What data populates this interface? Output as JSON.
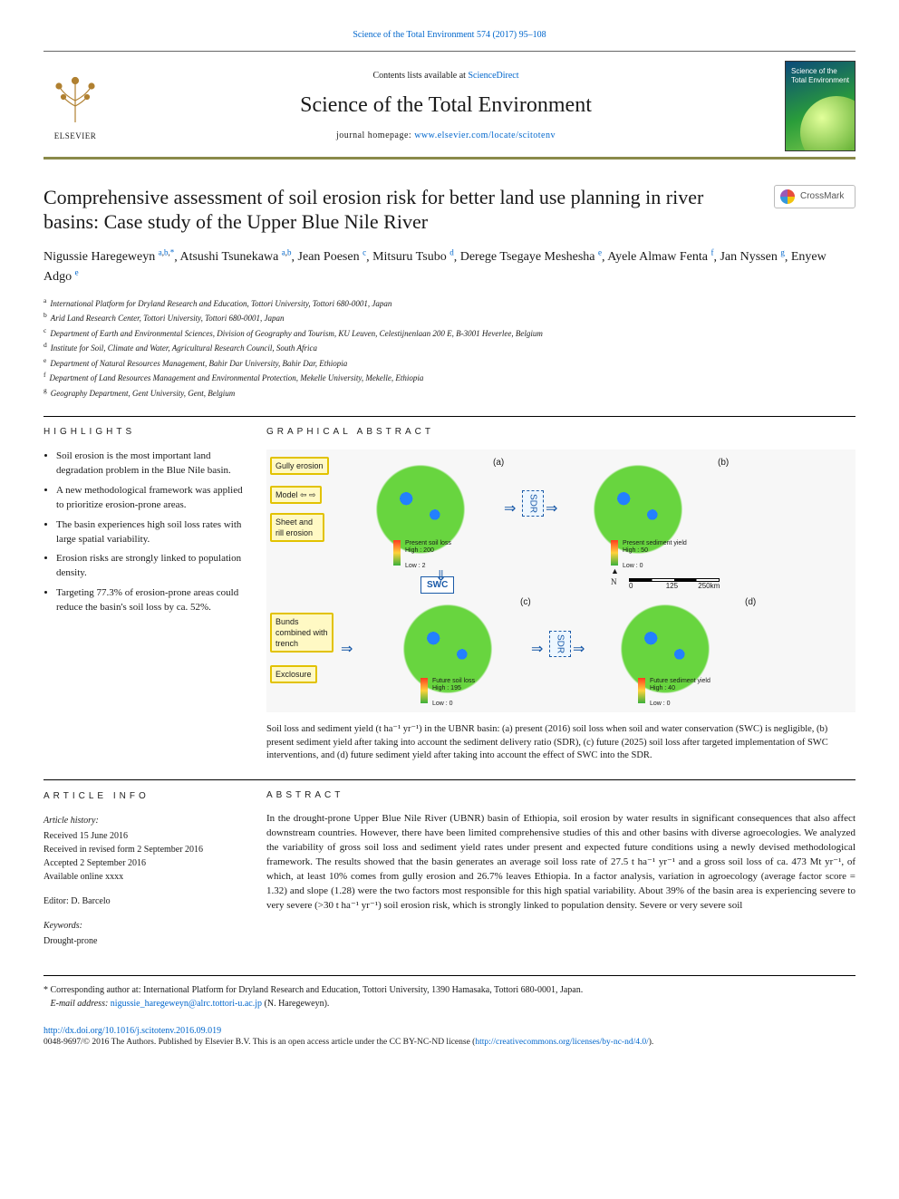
{
  "citation": {
    "text": "Science of the Total Environment 574 (2017) 95–108",
    "link_color": "#0066cc"
  },
  "masthead": {
    "contents_prefix": "Contents lists available at ",
    "contents_link": "ScienceDirect",
    "journal": "Science of the Total Environment",
    "homepage_prefix": "journal homepage: ",
    "homepage_url": "www.elsevier.com/locate/scitotenv",
    "publisher_label": "ELSEVIER",
    "cover_label_line1": "Science of the",
    "cover_label_line2": "Total Environment"
  },
  "crossmark_label": "CrossMark",
  "article": {
    "title": "Comprehensive assessment of soil erosion risk for better land use planning in river basins: Case study of the Upper Blue Nile River",
    "authors_html": [
      {
        "name": "Nigussie Haregeweyn",
        "sup": "a,b,*"
      },
      {
        "name": "Atsushi Tsunekawa",
        "sup": "a,b"
      },
      {
        "name": "Jean Poesen",
        "sup": "c"
      },
      {
        "name": "Mitsuru Tsubo",
        "sup": "d"
      },
      {
        "name": "Derege Tsegaye Meshesha",
        "sup": "e"
      },
      {
        "name": "Ayele Almaw Fenta",
        "sup": "f"
      },
      {
        "name": "Jan Nyssen",
        "sup": "g"
      },
      {
        "name": "Enyew Adgo",
        "sup": "e"
      }
    ],
    "affiliations": [
      {
        "key": "a",
        "text": "International Platform for Dryland Research and Education, Tottori University, Tottori 680-0001, Japan"
      },
      {
        "key": "b",
        "text": "Arid Land Research Center, Tottori University, Tottori 680-0001, Japan"
      },
      {
        "key": "c",
        "text": "Department of Earth and Environmental Sciences, Division of Geography and Tourism, KU Leuven, Celestijnenlaan 200 E, B-3001 Heverlee, Belgium"
      },
      {
        "key": "d",
        "text": "Institute for Soil, Climate and Water, Agricultural Research Council, South Africa"
      },
      {
        "key": "e",
        "text": "Department of Natural Resources Management, Bahir Dar University, Bahir Dar, Ethiopia"
      },
      {
        "key": "f",
        "text": "Department of Land Resources Management and Environmental Protection, Mekelle University, Mekelle, Ethiopia"
      },
      {
        "key": "g",
        "text": "Geography Department, Gent University, Gent, Belgium"
      }
    ]
  },
  "highlights": {
    "label": "HIGHLIGHTS",
    "items": [
      "Soil erosion is the most important land degradation problem in the Blue Nile basin.",
      "A new methodological framework was applied to prioritize erosion-prone areas.",
      "The basin experiences high soil loss rates with large spatial variability.",
      "Erosion risks are strongly linked to population density.",
      "Targeting 77.3% of erosion-prone areas could reduce the basin's soil loss by ca. 52%."
    ]
  },
  "graphical_abstract": {
    "label": "GRAPHICAL ABSTRACT",
    "panels": {
      "a": {
        "letter": "(a)",
        "legend_high": "High : 200",
        "legend_low": "Low : 2",
        "title": "Present soil loss"
      },
      "b": {
        "letter": "(b)",
        "legend_high": "High : 50",
        "legend_low": "Low : 0",
        "title": "Present sediment yield"
      },
      "c": {
        "letter": "(c)",
        "legend_high": "High : 195",
        "legend_low": "Low : 0",
        "title": "Future soil loss"
      },
      "d": {
        "letter": "(d)",
        "legend_high": "High : 40",
        "legend_low": "Low : 0",
        "title": "Future sediment yield"
      }
    },
    "side_boxes": {
      "gully": "Gully erosion",
      "model": "Model ⇦ ⇨",
      "sheet": "Sheet and rill erosion",
      "bunds": "Bunds combined with trench",
      "exclosure": "Exclosure"
    },
    "sdr_label": "SDR",
    "swc_label": "SWC",
    "scale_labels": {
      "left": "0",
      "mid": "125",
      "right": "250km"
    },
    "north_label": "N",
    "caption": "Soil loss and sediment yield (t ha⁻¹ yr⁻¹) in the UBNR basin: (a) present (2016) soil loss when soil and water conservation (SWC) is negligible, (b) present sediment yield after taking into account the sediment delivery ratio (SDR), (c) future (2025) soil loss after targeted implementation of SWC interventions, and (d) future sediment yield after taking into account the effect of SWC into the SDR.",
    "map_palette": {
      "high": "#ff3b1f",
      "mid": "#ffd23b",
      "low": "#3bb03b",
      "water": "#2b7fff"
    }
  },
  "article_info": {
    "label": "ARTICLE INFO",
    "history_header": "Article history:",
    "history": [
      "Received 15 June 2016",
      "Received in revised form 2 September 2016",
      "Accepted 2 September 2016",
      "Available online xxxx"
    ],
    "editor_label": "Editor:",
    "editor": "D. Barcelo",
    "keywords_label": "Keywords:",
    "keywords": [
      "Drought-prone"
    ]
  },
  "abstract": {
    "label": "ABSTRACT",
    "text": "In the drought-prone Upper Blue Nile River (UBNR) basin of Ethiopia, soil erosion by water results in significant consequences that also affect downstream countries. However, there have been limited comprehensive studies of this and other basins with diverse agroecologies. We analyzed the variability of gross soil loss and sediment yield rates under present and expected future conditions using a newly devised methodological framework. The results showed that the basin generates an average soil loss rate of 27.5 t ha⁻¹ yr⁻¹ and a gross soil loss of ca. 473 Mt yr⁻¹, of which, at least 10% comes from gully erosion and 26.7% leaves Ethiopia. In a factor analysis, variation in agroecology (average factor score = 1.32) and slope (1.28) were the two factors most responsible for this high spatial variability. About 39% of the basin area is experiencing severe to very severe (>30 t ha⁻¹ yr⁻¹) soil erosion risk, which is strongly linked to population density. Severe or very severe soil"
  },
  "footnotes": {
    "corresponding": "* Corresponding author at: International Platform for Dryland Research and Education, Tottori University, 1390 Hamasaka, Tottori 680-0001, Japan.",
    "email_label": "E-mail address:",
    "email": "nigussie_haregeweyn@alrc.tottori-u.ac.jp",
    "email_attribution": "(N. Haregeweyn)."
  },
  "doi": {
    "url": "http://dx.doi.org/10.1016/j.scitotenv.2016.09.019",
    "license": "0048-9697/© 2016 The Authors. Published by Elsevier B.V. This is an open access article under the CC BY-NC-ND license (",
    "license_url": "http://creativecommons.org/licenses/by-nc-nd/4.0/",
    "license_close": ")."
  },
  "colors": {
    "link": "#0066cc",
    "rule": "#000000",
    "accent_border": "#8a8a4a",
    "text": "#1a1a1a",
    "bg": "#ffffff"
  },
  "typography": {
    "body_family": "Georgia, 'Times New Roman', serif",
    "label_family": "Arial, sans-serif",
    "title_size_pt": 22,
    "journal_title_size_pt": 24,
    "author_size_pt": 14,
    "body_size_pt": 11,
    "small_size_pt": 10,
    "tiny_size_pt": 9
  }
}
